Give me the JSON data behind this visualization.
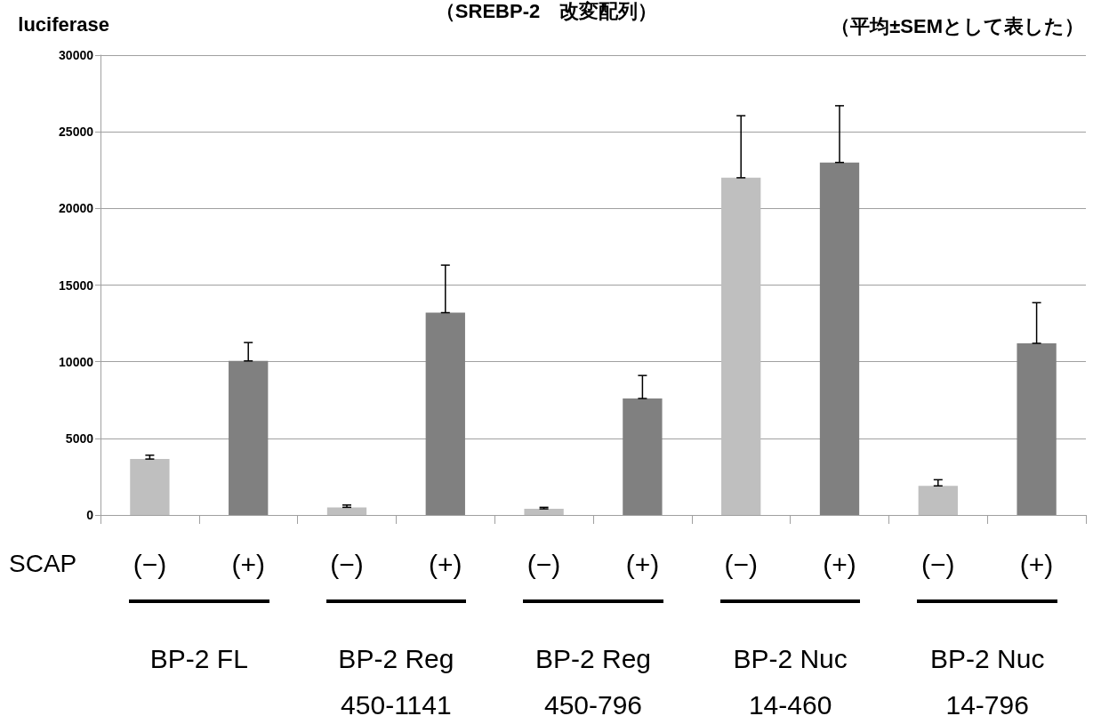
{
  "chart_data": {
    "type": "bar",
    "title": "（SREBP-2　改変配列）",
    "ylabel": "luciferase",
    "annotations": [
      "（平均±SEMとして表した）",
      "SCAP",
      "BP-2 FL",
      "BP-2 Reg\n450-1141",
      "BP-2 Reg\n450-796",
      "BP-2 Nuc\n14-460",
      "BP-2 Nuc\n14-796"
    ],
    "categories": [
      "(−)",
      "(+)",
      "(−)",
      "(+)",
      "(−)",
      "(+)",
      "(−)",
      "(+)",
      "(−)",
      "(+)"
    ],
    "values": [
      3650,
      10050,
      500,
      13200,
      400,
      7600,
      22000,
      23000,
      1900,
      11200
    ],
    "colors": [
      "#bfbfbf",
      "#808080",
      "#bfbfbf",
      "#808080",
      "#bfbfbf",
      "#808080",
      "#bfbfbf",
      "#808080",
      "#bfbfbf",
      "#808080"
    ],
    "errors": [
      [
        3650,
        3900
      ],
      [
        10050,
        11250
      ],
      [
        500,
        650
      ],
      [
        13200,
        16300
      ],
      [
        400,
        500
      ],
      [
        7600,
        9100
      ],
      [
        22000,
        26050
      ],
      [
        23000,
        26700
      ],
      [
        1900,
        2300
      ],
      [
        11200,
        13850
      ]
    ],
    "ylim": [
      0,
      30000
    ],
    "yticks": [
      0,
      5000,
      10000,
      15000,
      20000,
      25000,
      30000
    ],
    "grid": "y"
  }
}
